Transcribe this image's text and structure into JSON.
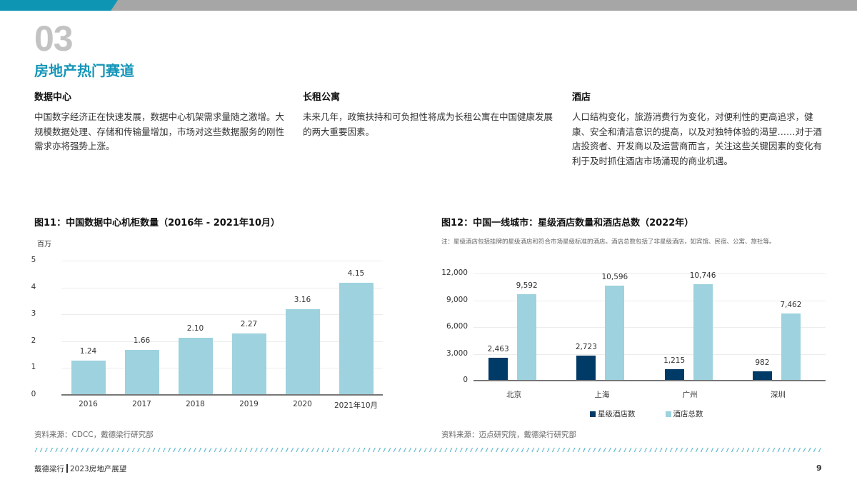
{
  "header": {
    "section_number": "03",
    "section_title": "房地产热门赛道",
    "accent_color": "#0e95b3",
    "bar_color": "#a6a6a6"
  },
  "columns": [
    {
      "title": "数据中心",
      "body": "中国数字经济正在快速发展，数据中心机架需求量随之激增。大规模数据处理、存储和传输量增加，市场对这些数据服务的刚性需求亦将强势上涨。"
    },
    {
      "title": "长租公寓",
      "body": "未来几年，政策扶持和可负担性将成为长租公寓在中国健康发展的两大重要因素。"
    },
    {
      "title": "酒店",
      "body": "人口结构变化，旅游消费行为变化，对便利性的更高追求，健康、安全和清洁意识的提高，以及对独特体验的渴望……对于酒店投资者、开发商以及运营商而言，关注这些关键因素的变化有利于及时抓住酒店市场涌现的商业机遇。"
    }
  ],
  "chart_data": [
    {
      "type": "bar",
      "title": "图11：中国数据中心机柜数量（2016年 - 2021年10月）",
      "ylabel": "百万",
      "xlabel": "",
      "categories": [
        "2016",
        "2017",
        "2018",
        "2019",
        "2020",
        "2021年10月"
      ],
      "values": [
        1.24,
        1.66,
        2.1,
        2.27,
        3.16,
        4.15
      ],
      "value_labels": [
        "1.24",
        "1.66",
        "2.10",
        "2.27",
        "3.16",
        "4.15"
      ],
      "yticks": [
        "5",
        "4",
        "3",
        "2",
        "1",
        "0"
      ],
      "ylim": [
        0,
        5
      ],
      "grid": true,
      "bar_color": "#9dd2de",
      "source": "资料来源：CDCC，戴德梁行研究部"
    },
    {
      "type": "bar",
      "title": "图12：中国一线城市：星级酒店数量和酒店总数（2022年）",
      "note": "注：星级酒店包括挂牌的星级酒店和符合市场星级标准的酒店。酒店总数包括了非星级酒店，如宾馆、民宿、公寓、旅社等。",
      "xlabel": "",
      "ylabel": "",
      "categories": [
        "北京",
        "上海",
        "广州",
        "深圳"
      ],
      "series": [
        {
          "name": "星级酒店数",
          "values": [
            2463,
            2723,
            1215,
            982
          ],
          "labels": [
            "2,463",
            "2,723",
            "1,215",
            "982"
          ],
          "color": "#003a66"
        },
        {
          "name": "酒店总数",
          "values": [
            9592,
            10596,
            10746,
            7462
          ],
          "labels": [
            "9,592",
            "10,596",
            "10,746",
            "7,462"
          ],
          "color": "#9dd2de"
        }
      ],
      "yticks": [
        "12,000",
        "9,000",
        "6,000",
        "3,000",
        "0"
      ],
      "ylim": [
        0,
        12000
      ],
      "grid": true,
      "legend_position": "bottom",
      "source": "资料来源：迈点研究院，戴德梁行研究部"
    }
  ],
  "footer": {
    "brand": "戴德梁行",
    "publication": "2023房地产展望",
    "page": "9"
  }
}
